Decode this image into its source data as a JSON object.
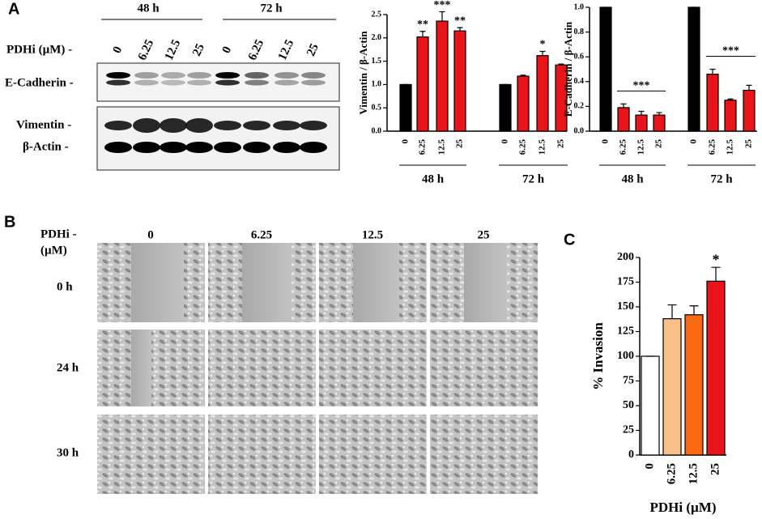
{
  "panels": {
    "a": "A",
    "b": "B",
    "c": "C"
  },
  "blot": {
    "timepoints": [
      "48 h",
      "72 h"
    ],
    "treatment_label": "PDHi (µM) -",
    "lanes": [
      "0",
      "6.25",
      "12.5",
      "25",
      "0",
      "6.25",
      "12.5",
      "25"
    ],
    "rows": [
      "E-Cadherin -",
      "Vimentin -",
      "β-Actin -"
    ]
  },
  "migration": {
    "treatment_label": [
      "PDHi -",
      "(µM)"
    ],
    "columns": [
      "0",
      "6.25",
      "12.5",
      "25"
    ],
    "rows": [
      "0 h",
      "24 h",
      "30 h"
    ]
  },
  "chart_data": [
    {
      "type": "bar",
      "ylabel": "Vimentin / β-Actin",
      "groups": [
        {
          "name": "48 h",
          "categories": [
            "0",
            "6.25",
            "12.5",
            "25"
          ],
          "values": [
            1.0,
            2.02,
            2.36,
            2.15
          ],
          "errors": [
            0,
            0.12,
            0.2,
            0.07
          ],
          "significance": [
            null,
            "**",
            "***",
            "**"
          ]
        },
        {
          "name": "72 h",
          "categories": [
            "0",
            "6.25",
            "12.5",
            "25"
          ],
          "values": [
            1.0,
            1.18,
            1.62,
            1.42
          ],
          "errors": [
            0,
            0.02,
            0.09,
            0.02
          ],
          "significance": [
            null,
            null,
            "*",
            null
          ]
        }
      ],
      "colors": [
        "#000000",
        "#e8141a",
        "#e8141a",
        "#e8141a"
      ],
      "ylim": [
        0,
        2.5
      ],
      "yticks": [
        {
          "value": 0,
          "label": "0.0"
        },
        0.5,
        {
          "value": 1,
          "label": "1.0"
        },
        1.5,
        {
          "value": 2,
          "label": "2.0"
        },
        2.5
      ]
    },
    {
      "type": "bar",
      "ylabel": "E-Cadherin / β-Actin",
      "groups": [
        {
          "name": "48 h",
          "categories": [
            "0",
            "6.25",
            "12.5",
            "25"
          ],
          "values": [
            1.0,
            0.19,
            0.13,
            0.13
          ],
          "errors": [
            0,
            0.03,
            0.03,
            0.02
          ],
          "significance": "***"
        },
        {
          "name": "72 h",
          "categories": [
            "0",
            "6.25",
            "12.5",
            "25"
          ],
          "values": [
            1.0,
            0.46,
            0.25,
            0.33
          ],
          "errors": [
            0,
            0.04,
            0.01,
            0.04
          ],
          "significance": "***"
        }
      ],
      "colors": [
        "#000000",
        "#e8141a",
        "#e8141a",
        "#e8141a"
      ],
      "ylim": [
        0,
        1.0
      ],
      "yticks": [
        {
          "value": 0,
          "label": "0.0"
        },
        0.2,
        0.4,
        0.6,
        0.8,
        {
          "value": 1,
          "label": "1.0"
        }
      ]
    },
    {
      "type": "bar",
      "xlabel": "PDHi (µM)",
      "ylabel": "% Invasion",
      "groups": [
        {
          "categories": [
            "0",
            "6.25",
            "12.5",
            "25"
          ],
          "values": [
            100,
            138,
            142,
            176
          ],
          "errors": [
            0,
            14,
            9,
            14
          ],
          "significance": [
            null,
            null,
            null,
            "*"
          ]
        }
      ],
      "colors": [
        "#ffffff",
        "#f9c08a",
        "#f96a10",
        "#e8141a"
      ],
      "ylim": [
        0,
        200
      ],
      "yticks": [
        0,
        25,
        50,
        75,
        100,
        125,
        150,
        175,
        200
      ]
    }
  ]
}
